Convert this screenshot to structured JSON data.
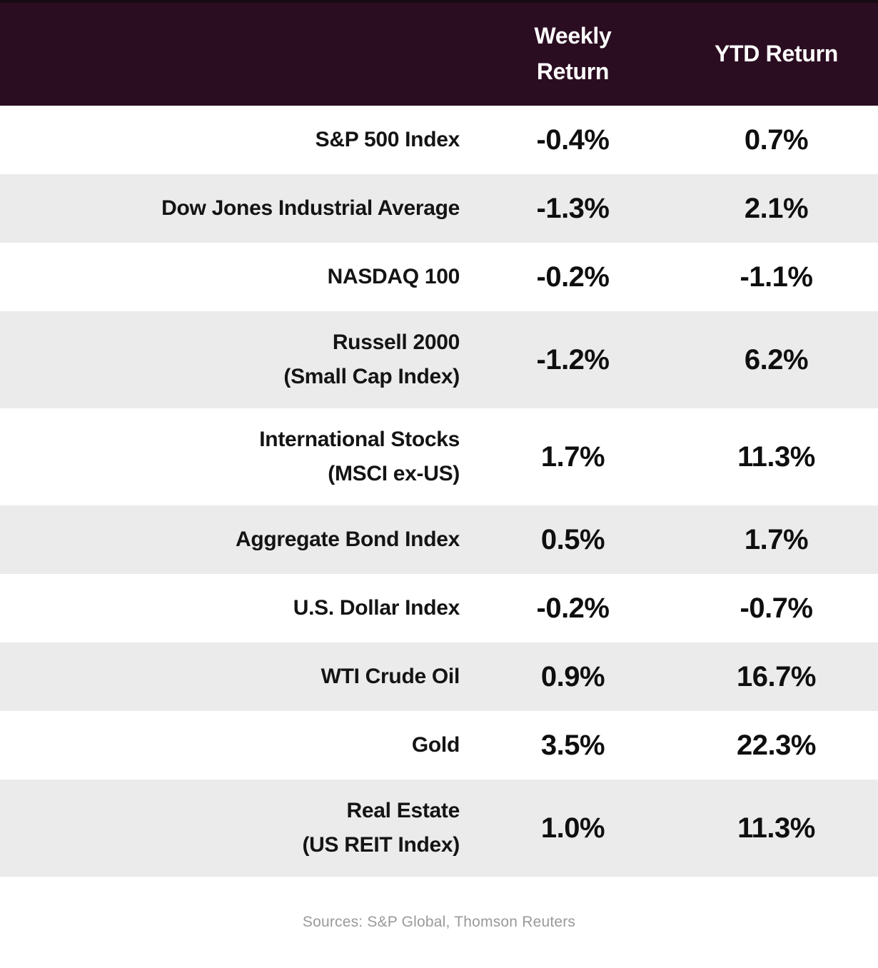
{
  "header": {
    "weekly_label": "Weekly Return",
    "ytd_label": "YTD Return"
  },
  "rows": [
    {
      "label_lines": [
        "S&P 500 Index"
      ],
      "weekly": "-0.4%",
      "ytd": "0.7%"
    },
    {
      "label_lines": [
        "Dow Jones Industrial Average"
      ],
      "weekly": "-1.3%",
      "ytd": "2.1%"
    },
    {
      "label_lines": [
        "NASDAQ 100"
      ],
      "weekly": "-0.2%",
      "ytd": "-1.1%"
    },
    {
      "label_lines": [
        "Russell 2000",
        "(Small Cap Index)"
      ],
      "weekly": "-1.2%",
      "ytd": "6.2%"
    },
    {
      "label_lines": [
        "International Stocks",
        "(MSCI ex-US)"
      ],
      "weekly": "1.7%",
      "ytd": "11.3%"
    },
    {
      "label_lines": [
        "Aggregate Bond Index"
      ],
      "weekly": "0.5%",
      "ytd": "1.7%"
    },
    {
      "label_lines": [
        "U.S. Dollar Index"
      ],
      "weekly": "-0.2%",
      "ytd": "-0.7%"
    },
    {
      "label_lines": [
        "WTI Crude Oil"
      ],
      "weekly": "0.9%",
      "ytd": "16.7%"
    },
    {
      "label_lines": [
        "Gold"
      ],
      "weekly": "3.5%",
      "ytd": "22.3%"
    },
    {
      "label_lines": [
        "Real Estate",
        "(US REIT Index)"
      ],
      "weekly": "1.0%",
      "ytd": "11.3%"
    }
  ],
  "footer": {
    "sources": "Sources: S&P Global, Thomson Reuters"
  },
  "colors": {
    "header_bg": "#2b0d21",
    "header_top_strip": "#170a12",
    "alt_row_bg": "#ebebeb",
    "row_bg": "#ffffff",
    "value_text": "#0f0f0f",
    "header_text": "#ffffff",
    "footer_text": "#9a9a9a"
  },
  "chart_data": {
    "type": "table",
    "title": "",
    "columns": [
      "",
      "Weekly Return",
      "YTD Return"
    ],
    "rows": [
      [
        "S&P 500 Index",
        "-0.4%",
        "0.7%"
      ],
      [
        "Dow Jones Industrial Average",
        "-1.3%",
        "2.1%"
      ],
      [
        "NASDAQ 100",
        "-0.2%",
        "-1.1%"
      ],
      [
        "Russell 2000 (Small Cap Index)",
        "-1.2%",
        "6.2%"
      ],
      [
        "International Stocks (MSCI ex-US)",
        "1.7%",
        "11.3%"
      ],
      [
        "Aggregate Bond Index",
        "0.5%",
        "1.7%"
      ],
      [
        "U.S. Dollar Index",
        "-0.2%",
        "-0.7%"
      ],
      [
        "WTI Crude Oil",
        "0.9%",
        "16.7%"
      ],
      [
        "Gold",
        "3.5%",
        "22.3%"
      ],
      [
        "Real Estate (US REIT Index)",
        "1.0%",
        "11.3%"
      ]
    ],
    "source": "Sources: S&P Global, Thomson Reuters",
    "layout_hints": {
      "label_alignment": "right",
      "value_alignment": "center",
      "alternating_row_shading": true,
      "shaded_row_indices": [
        1,
        3,
        5,
        7,
        9
      ]
    }
  }
}
